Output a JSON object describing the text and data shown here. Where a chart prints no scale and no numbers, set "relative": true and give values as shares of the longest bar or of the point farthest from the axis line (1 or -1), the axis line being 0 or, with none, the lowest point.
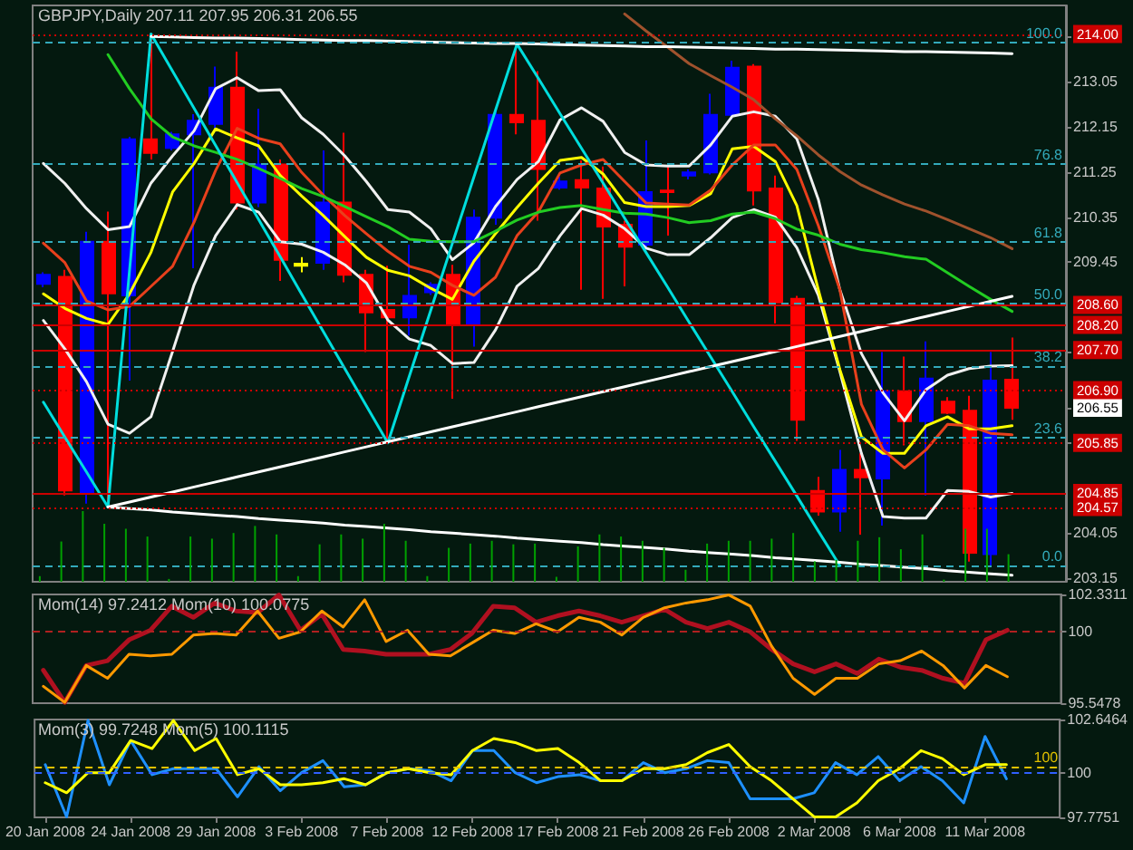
{
  "chart_data": [
    {
      "type": "candlestick",
      "title": "GBPJPY,Daily 207.11 207.95 206.31 206.55",
      "categories": [
        null,
        null,
        null,
        null,
        null,
        null,
        null,
        null,
        null,
        null,
        null,
        null,
        null,
        null,
        null,
        null,
        null,
        null,
        null,
        null,
        null,
        null,
        null,
        null,
        null,
        null,
        null,
        null,
        null,
        null,
        null,
        null,
        null,
        null,
        null,
        null,
        null,
        null,
        null,
        null,
        null,
        null,
        null,
        null,
        null,
        null
      ],
      "ohlc": [
        [
          209.02,
          209.25,
          208.95,
          209.2
        ],
        [
          209.16,
          209.3,
          204.8,
          204.9
        ],
        [
          204.84,
          210.06,
          204.64,
          209.86
        ],
        [
          209.86,
          210.46,
          204.57,
          208.83
        ],
        [
          208.79,
          211.95,
          207.09,
          211.9
        ],
        [
          211.9,
          214.0,
          211.5,
          211.63
        ],
        [
          211.73,
          212.05,
          211.68,
          212.0
        ],
        [
          212.0,
          212.4,
          209.33,
          212.27
        ],
        [
          212.21,
          213.35,
          212.1,
          212.93
        ],
        [
          212.93,
          213.65,
          210.5,
          210.64
        ],
        [
          210.64,
          212.51,
          210.55,
          211.4
        ],
        [
          211.4,
          211.5,
          209.08,
          209.5
        ],
        [
          209.38,
          209.55,
          209.25,
          209.42
        ],
        [
          209.44,
          211.68,
          209.3,
          210.64
        ],
        [
          210.64,
          212.03,
          209.05,
          209.2
        ],
        [
          209.2,
          209.3,
          207.66,
          208.45
        ],
        [
          208.5,
          209.38,
          205.85,
          208.35
        ],
        [
          208.35,
          209.8,
          207.99,
          208.78
        ],
        [
          208.85,
          209.05,
          208.8,
          209.0
        ],
        [
          209.2,
          209.4,
          206.73,
          208.23
        ],
        [
          208.23,
          210.5,
          207.77,
          210.34
        ],
        [
          210.34,
          212.5,
          210.2,
          212.39
        ],
        [
          212.39,
          213.77,
          212.0,
          212.24
        ],
        [
          212.27,
          213.26,
          210.28,
          211.31
        ],
        [
          210.94,
          211.15,
          210.9,
          211.06
        ],
        [
          211.09,
          211.48,
          208.9,
          210.94
        ],
        [
          210.92,
          211.36,
          208.72,
          210.16
        ],
        [
          210.2,
          210.28,
          208.97,
          209.76
        ],
        [
          209.8,
          211.88,
          209.7,
          210.85
        ],
        [
          210.88,
          211.42,
          209.98,
          210.85
        ],
        [
          211.18,
          211.3,
          211.1,
          211.24
        ],
        [
          211.24,
          212.81,
          211.2,
          212.39
        ],
        [
          212.39,
          213.47,
          212.3,
          213.33
        ],
        [
          213.35,
          213.4,
          210.58,
          210.88
        ],
        [
          210.92,
          211.18,
          208.23,
          208.65
        ],
        [
          208.72,
          208.78,
          205.89,
          206.31
        ],
        [
          204.89,
          205.17,
          204.4,
          204.48
        ],
        [
          204.48,
          205.71,
          204.08,
          205.31
        ],
        [
          205.31,
          205.64,
          204.02,
          205.16
        ],
        [
          205.14,
          207.66,
          204.2,
          206.88
        ],
        [
          206.88,
          207.57,
          205.8,
          206.28
        ],
        [
          206.28,
          207.87,
          204.8,
          207.13
        ],
        [
          206.67,
          206.76,
          206.42,
          206.45
        ],
        [
          206.49,
          206.79,
          203.48,
          203.66
        ],
        [
          203.63,
          207.66,
          203.41,
          207.09
        ],
        [
          207.11,
          207.95,
          206.31,
          206.55
        ]
      ],
      "colors": [
        "#0000ff",
        "#ff0000",
        "#0000ff",
        "#ff0000",
        "#0000ff",
        "#ff0000",
        "#0000ff",
        "#0000ff",
        "#0000ff",
        "#ff0000",
        "#0000ff",
        "#ff0000",
        "#ffff00",
        "#0000ff",
        "#ff0000",
        "#ff0000",
        "#ff0000",
        "#0000ff",
        "#0000ff",
        "#ff0000",
        "#0000ff",
        "#0000ff",
        "#ff0000",
        "#ff0000",
        "#0000ff",
        "#ff0000",
        "#ff0000",
        "#ff0000",
        "#0000ff",
        "#ff0000",
        "#0000ff",
        "#0000ff",
        "#0000ff",
        "#ff0000",
        "#ff0000",
        "#ff0000",
        "#ff0000",
        "#0000ff",
        "#ff0000",
        "#0000ff",
        "#ff0000",
        "#0000ff",
        "#ff0000",
        "#ff0000",
        "#0000ff",
        "#ff0000"
      ],
      "series": [
        {
          "type": "line",
          "color": "#f0f0f0",
          "values": [
            211.42,
            211.02,
            210.52,
            210.1,
            210.16,
            211.03,
            211.57,
            212.07,
            212.91,
            213.13,
            212.87,
            212.89,
            212.33,
            212.0,
            211.57,
            211.06,
            210.5,
            210.45,
            210.12,
            209.5,
            209.84,
            210.56,
            211.1,
            211.46,
            212.29,
            212.53,
            212.26,
            211.64,
            211.39,
            211.37,
            211.37,
            211.79,
            212.36,
            212.45,
            212.36,
            211.91,
            210.7,
            208.9,
            207.63,
            206.85,
            206.29,
            206.91,
            207.2,
            207.33,
            207.38,
            207.39
          ]
        },
        {
          "type": "line",
          "color": "#f0f0f0",
          "values": [
            208.29,
            207.72,
            207.07,
            206.22,
            206.04,
            206.37,
            207.67,
            209.0,
            209.98,
            210.6,
            210.45,
            209.86,
            209.81,
            209.65,
            209.4,
            209.04,
            208.3,
            207.92,
            207.79,
            207.43,
            207.45,
            208.1,
            208.97,
            209.33,
            209.98,
            210.52,
            210.39,
            210.12,
            209.73,
            209.6,
            209.6,
            209.94,
            210.34,
            210.5,
            210.35,
            209.74,
            208.79,
            207.27,
            205.64,
            204.38,
            204.35,
            204.35,
            204.9,
            204.88,
            204.77,
            204.84
          ]
        },
        {
          "type": "line",
          "color": "#ffff00",
          "values": [
            208.82,
            208.53,
            208.33,
            208.21,
            208.82,
            209.65,
            210.85,
            211.42,
            212.11,
            211.93,
            211.77,
            211.18,
            210.77,
            210.38,
            209.96,
            209.55,
            209.29,
            209.18,
            208.93,
            208.71,
            209.47,
            210.02,
            210.54,
            211.03,
            211.48,
            211.54,
            211.21,
            210.64,
            210.56,
            210.56,
            210.58,
            210.82,
            211.71,
            211.76,
            211.46,
            210.58,
            208.9,
            207.31,
            205.97,
            205.64,
            205.64,
            206.19,
            206.37,
            206.13,
            206.13,
            206.19
          ]
        },
        {
          "type": "line",
          "color": "#e8401c",
          "values": [
            209.83,
            209.44,
            208.68,
            208.5,
            208.57,
            208.97,
            209.37,
            210.25,
            211.28,
            212.12,
            211.92,
            211.81,
            211.24,
            210.79,
            210.38,
            210.02,
            209.67,
            209.37,
            209.25,
            208.99,
            208.79,
            209.15,
            209.98,
            210.46,
            211.23,
            211.39,
            211.5,
            211.06,
            210.63,
            210.61,
            210.59,
            210.89,
            211.39,
            211.79,
            211.79,
            211.3,
            210.18,
            208.9,
            206.62,
            205.71,
            205.35,
            205.71,
            206.22,
            206.19,
            206.04,
            206.01
          ]
        },
        {
          "type": "line",
          "color": "#22cc22",
          "values": [
            null,
            null,
            null,
            213.59,
            212.91,
            212.31,
            211.95,
            211.77,
            211.64,
            211.5,
            211.32,
            211.12,
            210.92,
            210.76,
            210.56,
            210.36,
            210.16,
            209.91,
            209.87,
            209.86,
            209.86,
            210.07,
            210.29,
            210.45,
            210.54,
            210.58,
            210.5,
            210.43,
            210.41,
            210.34,
            210.24,
            210.28,
            210.41,
            210.45,
            210.32,
            210.11,
            209.99,
            209.81,
            209.7,
            209.64,
            209.56,
            209.51,
            209.24,
            208.97,
            208.71,
            208.47
          ]
        },
        {
          "type": "line",
          "color": "#a0522d",
          "values": [
            null,
            null,
            null,
            null,
            null,
            null,
            null,
            null,
            null,
            null,
            null,
            null,
            null,
            null,
            null,
            null,
            null,
            null,
            null,
            null,
            null,
            null,
            null,
            null,
            null,
            null,
            null,
            214.4,
            214.06,
            213.74,
            213.41,
            213.17,
            212.94,
            212.69,
            212.31,
            211.97,
            211.59,
            211.26,
            210.99,
            210.79,
            210.61,
            210.47,
            210.3,
            210.12,
            209.94,
            209.72
          ]
        },
        {
          "type": "line",
          "color": "#00dddd",
          "values": [
            206.66,
            205.96,
            205.27,
            204.57,
            209.28,
            214.0,
            213.26,
            212.52,
            211.78,
            211.04,
            210.3,
            209.56,
            208.81,
            208.07,
            207.33,
            206.59,
            205.85,
            207.18,
            208.5,
            209.83,
            211.15,
            212.48,
            213.8,
            213.11,
            212.41,
            211.72,
            211.03,
            210.33,
            209.64,
            208.95,
            208.25,
            207.56,
            206.87,
            206.17,
            205.48,
            204.79,
            204.09,
            203.4,
            null,
            null,
            null,
            null,
            null,
            null,
            null,
            null
          ]
        },
        {
          "type": "line",
          "color": "#ffffff",
          "values": [
            null,
            null,
            null,
            204.57,
            204.67,
            204.77,
            204.87,
            204.97,
            205.07,
            205.17,
            205.27,
            205.37,
            205.47,
            205.57,
            205.67,
            205.77,
            205.87,
            205.97,
            206.07,
            206.17,
            206.27,
            206.37,
            206.47,
            206.57,
            206.67,
            206.77,
            206.87,
            206.97,
            207.07,
            207.17,
            207.27,
            207.37,
            207.47,
            207.57,
            207.67,
            207.77,
            207.87,
            207.97,
            208.07,
            208.17,
            208.27,
            208.37,
            208.47,
            208.57,
            208.67,
            208.77
          ]
        },
        {
          "type": "line",
          "color": "#ffffff",
          "values": [
            null,
            null,
            null,
            204.57,
            204.54,
            204.51,
            204.47,
            204.44,
            204.41,
            204.38,
            204.34,
            204.31,
            204.28,
            204.25,
            204.21,
            204.18,
            204.15,
            204.12,
            204.08,
            204.05,
            204.02,
            203.99,
            203.95,
            203.92,
            203.89,
            203.86,
            203.82,
            203.79,
            203.76,
            203.73,
            203.69,
            203.66,
            203.63,
            203.6,
            203.56,
            203.53,
            203.5,
            203.47,
            203.43,
            203.4,
            203.37,
            203.34,
            203.3,
            203.27,
            203.24,
            203.21
          ]
        },
        {
          "type": "line",
          "color": "#ffffff",
          "values": [
            null,
            null,
            null,
            null,
            null,
            213.95,
            213.94,
            213.93,
            213.92,
            213.92,
            213.91,
            213.9,
            213.89,
            213.88,
            213.87,
            213.87,
            213.86,
            213.85,
            213.84,
            213.83,
            213.82,
            213.81,
            213.81,
            213.8,
            213.79,
            213.78,
            213.77,
            213.76,
            213.75,
            213.75,
            213.74,
            213.73,
            213.72,
            213.71,
            213.7,
            213.7,
            213.69,
            213.68,
            213.67,
            213.66,
            213.65,
            213.65,
            213.64,
            213.63,
            213.62,
            213.61
          ]
        }
      ],
      "ylim": [
        203.08,
        214.57
      ],
      "yticks": [
        203.15,
        204.05,
        {
          "value": 205.85,
          "label": null
        },
        {
          "value": 206.55,
          "label": "206.55"
        },
        {
          "value": 207.65,
          "label": null
        },
        209.45,
        210.35,
        211.25,
        212.15,
        213.05,
        {
          "value": 213.95,
          "label": null
        }
      ],
      "ref_lines": [
        {
          "axis": "y",
          "value": 214.0,
          "label": "214.00",
          "color": "#cc0000",
          "line_style": "dotted"
        },
        {
          "axis": "y",
          "value": 208.6,
          "label": "208.60",
          "color": "#cc0000",
          "line_style": "solid"
        },
        {
          "axis": "y",
          "value": 208.2,
          "label": "208.20",
          "color": "#cc0000",
          "line_style": "solid"
        },
        {
          "axis": "y",
          "value": 207.7,
          "label": "207.70",
          "color": "#cc0000",
          "line_style": "solid"
        },
        {
          "axis": "y",
          "value": 206.9,
          "label": "206.90",
          "color": "#cc0000",
          "line_style": "dotted"
        },
        {
          "axis": "y",
          "value": 205.85,
          "label": "205.85",
          "color": "#cc0000",
          "line_style": "dotted"
        },
        {
          "axis": "y",
          "value": 204.85,
          "label": "204.85",
          "color": "#cc0000",
          "line_style": "solid"
        },
        {
          "axis": "y",
          "value": 204.57,
          "label": "204.57",
          "color": "#cc0000",
          "line_style": "dotted"
        },
        {
          "axis": "y",
          "value": 213.83,
          "color": "#33aabb",
          "line_style": "dashed"
        },
        {
          "axis": "y",
          "value": 211.41,
          "color": "#33aabb",
          "line_style": "dashed"
        },
        {
          "axis": "y",
          "value": 209.85,
          "color": "#33aabb",
          "line_style": "dashed"
        },
        {
          "axis": "y",
          "value": 208.62,
          "color": "#33aabb",
          "line_style": "dashed"
        },
        {
          "axis": "y",
          "value": 207.38,
          "color": "#33aabb",
          "line_style": "dashed"
        },
        {
          "axis": "y",
          "value": 205.95,
          "color": "#33aabb",
          "line_style": "dashed"
        },
        {
          "axis": "y",
          "value": 203.4,
          "color": "#33aabb",
          "line_style": "dashed"
        }
      ],
      "annotations": [
        {
          "text": "100.0",
          "y": 213.83
        },
        {
          "text": "76.8",
          "y": 211.41
        },
        {
          "text": "61.8",
          "y": 209.85
        },
        {
          "text": "50.0",
          "y": 208.62
        },
        {
          "text": "38.2",
          "y": 207.38
        },
        {
          "text": "23.6",
          "y": 205.95
        },
        {
          "text": "0.0",
          "y": 203.4
        }
      ],
      "tick_labels": "y"
    },
    {
      "type": "bar",
      "relative": true,
      "categories": [
        null,
        null,
        null,
        null,
        null,
        null,
        null,
        null,
        null,
        null,
        null,
        null,
        null,
        null,
        null,
        null,
        null,
        null,
        null,
        null,
        null,
        null,
        null,
        null,
        null,
        null,
        null,
        null,
        null,
        null,
        null,
        null,
        null,
        null,
        null,
        null,
        null,
        null,
        null,
        null,
        null,
        null,
        null,
        null,
        null,
        null
      ],
      "values": [
        0.08,
        0.57,
        1,
        0.82,
        0.75,
        0.64,
        0.04,
        0.64,
        0.61,
        0.69,
        0.79,
        0.67,
        0.08,
        0.53,
        0.67,
        0.61,
        0.82,
        0.58,
        0.08,
        0.48,
        0.54,
        0.58,
        0.53,
        0.54,
        0.07,
        0.5,
        0.67,
        0.64,
        0.58,
        0.48,
        0.17,
        0.54,
        0.58,
        0.58,
        0.61,
        0.69,
        0.29,
        0.31,
        0.58,
        0.63,
        0.46,
        0.67,
        0.03,
        0.75,
        0.75,
        0.39
      ],
      "color": "#00a000",
      "tick_labels": false
    },
    {
      "type": "line",
      "title": "Mom(14) 97.2412 Mom(10) 100.0775",
      "categories": [
        null,
        null,
        null,
        null,
        null,
        null,
        null,
        null,
        null,
        null,
        null,
        null,
        null,
        null,
        null,
        null,
        null,
        null,
        null,
        null,
        null,
        null,
        null,
        null,
        null,
        null,
        null,
        null,
        null,
        null,
        null,
        null,
        null,
        null,
        null,
        null,
        null,
        null,
        null,
        null,
        null,
        null,
        null,
        null,
        null,
        null
      ],
      "series": [
        {
          "color": "#b01020",
          "values": [
            97.6,
            95.6,
            97.9,
            98.2,
            99.5,
            100.1,
            101.6,
            100.9,
            101.8,
            101.3,
            101.2,
            102.3,
            100.1,
            101.1,
            98.9,
            98.8,
            98.6,
            98.6,
            98.6,
            98.9,
            99.9,
            101.6,
            101.5,
            100.6,
            101.0,
            101.3,
            101.0,
            100.6,
            101.0,
            101.4,
            100.6,
            100.2,
            100.6,
            100.0,
            98.9,
            98.0,
            97.5,
            98.0,
            97.4,
            98.3,
            97.8,
            97.6,
            97.1,
            96.8,
            99.5,
            100.1
          ]
        },
        {
          "color": "#ff9900",
          "values": [
            96.6,
            95.6,
            97.9,
            97.1,
            98.6,
            98.5,
            98.6,
            99.8,
            99.9,
            99.8,
            101.3,
            99.6,
            100.0,
            101.3,
            100.3,
            102.0,
            99.4,
            100.1,
            98.6,
            98.5,
            99.3,
            100.1,
            99.9,
            100.5,
            100.0,
            100.9,
            100.6,
            99.8,
            100.9,
            101.5,
            101.8,
            102.0,
            102.3,
            101.6,
            99.1,
            97.1,
            96.1,
            97.1,
            97.1,
            98.0,
            98.2,
            98.8,
            97.9,
            96.5,
            97.9,
            97.2
          ]
        }
      ],
      "ylim": [
        95.5478,
        102.3311
      ],
      "yticks": [
        95.5478,
        100,
        102.3311
      ],
      "ref_lines": [
        {
          "axis": "y",
          "value": 100,
          "color": "#b02020",
          "line_style": "dashed"
        }
      ],
      "tick_labels": "y"
    },
    {
      "type": "line",
      "title": "Mom(3) 99.7248 Mom(5) 100.1115",
      "categories": [
        "20 Jan 2008",
        null,
        null,
        null,
        "24 Jan 2008",
        null,
        null,
        null,
        "29 Jan 2008",
        null,
        null,
        null,
        "3 Feb 2008",
        null,
        null,
        null,
        "7 Feb 2008",
        null,
        null,
        null,
        "12 Feb 2008",
        null,
        null,
        null,
        "17 Feb 2008",
        null,
        null,
        null,
        "21 Feb 2008",
        null,
        null,
        null,
        "26 Feb 2008",
        null,
        null,
        null,
        "2 Mar 2008",
        null,
        null,
        null,
        "6 Mar 2008",
        null,
        null,
        null,
        "11 Mar 2008",
        null
      ],
      "series": [
        {
          "color": "#1e90ff",
          "values": [
            100.4,
            97.8,
            102.6,
            99.4,
            101.6,
            99.9,
            100.2,
            100.2,
            100.2,
            98.8,
            100.3,
            99.1,
            100.0,
            100.6,
            99.3,
            99.4,
            100.0,
            100.2,
            100.1,
            99.6,
            101.1,
            101.1,
            100.0,
            99.5,
            99.8,
            99.9,
            99.6,
            99.6,
            100.5,
            100.0,
            100.2,
            100.6,
            100.5,
            98.7,
            98.7,
            98.7,
            99.0,
            100.5,
            99.9,
            100.8,
            99.6,
            100.3,
            99.6,
            98.5,
            101.8,
            99.7
          ]
        },
        {
          "color": "#ffff00",
          "values": [
            99.5,
            99.0,
            100.0,
            100.0,
            101.6,
            101.2,
            102.6,
            101.1,
            101.7,
            99.9,
            100.2,
            99.4,
            99.4,
            99.5,
            99.7,
            99.4,
            100.0,
            100.2,
            100.0,
            99.9,
            101.1,
            101.7,
            101.5,
            101.1,
            101.2,
            100.5,
            99.6,
            99.6,
            100.2,
            100.2,
            100.4,
            101.0,
            101.4,
            100.3,
            99.6,
            98.7,
            97.8,
            97.8,
            98.5,
            99.6,
            100.2,
            101.1,
            100.7,
            99.9,
            100.4,
            100.4
          ]
        }
      ],
      "ylim": [
        97.7751,
        102.6464
      ],
      "yticks": [
        97.7751,
        100,
        102.6464
      ],
      "ref_lines": [
        {
          "axis": "y",
          "value": 100,
          "color": "#3060ff",
          "line_style": "dashed"
        },
        {
          "axis": "y",
          "value": 100.3,
          "label": "100",
          "color": "#e0c000",
          "line_style": "dashed"
        }
      ]
    }
  ]
}
